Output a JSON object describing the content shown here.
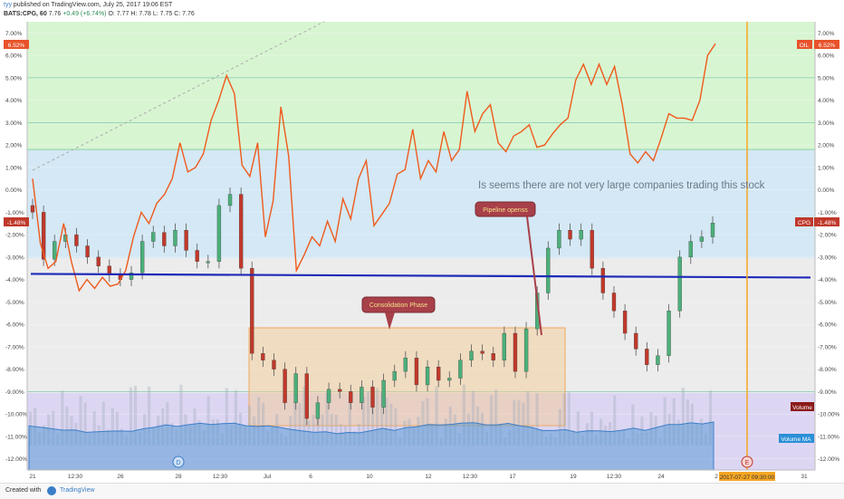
{
  "header": {
    "author": "tyy",
    "published_line": "published on TradingView.com, July 25, 2017 19:06 EST",
    "symbol": "BATS:CPG, 60",
    "last": "7.76",
    "change": "+0.49 (+6.74%)",
    "ohlc": "O: 7.77 H: 7.78 L: 7.75 C: 7.76"
  },
  "footer": {
    "created_with": "Created with",
    "brand": "TradingView"
  },
  "annotations": {
    "note": "Is seems there are not very large companies trading this stock",
    "pipeline": "Pipeline openss",
    "consolidation": "Consolidation Phase",
    "crosshair_date": "2017-07-27 09:30:00",
    "event_d": "D",
    "event_e": "E"
  },
  "price_tags": {
    "oil_left": "6.52%",
    "oil_right_label": "OIL",
    "oil_right": "6.52%",
    "cpg_left": "-1.48%",
    "cpg_right_label": "CPG",
    "cpg_right": "-1.48%",
    "volume": "Volume",
    "volume_ma": "Volume MA"
  },
  "colors": {
    "oil_line": "#ef5a1c",
    "support_line": "#1f2bb8",
    "candle_up": "#4caf7a",
    "candle_down": "#c0392b",
    "crosshair": "#f5a623",
    "volume": "#5b9bd5"
  },
  "chart_data": {
    "type": "line",
    "ylim": [
      -12.5,
      7.5
    ],
    "y_ticks": [
      "7.00%",
      "6.00%",
      "5.00%",
      "4.00%",
      "3.00%",
      "2.00%",
      "1.00%",
      "0.00%",
      "-1.00%",
      "-2.00%",
      "-3.00%",
      "-4.00%",
      "-5.00%",
      "-6.00%",
      "-7.00%",
      "-8.00%",
      "-9.00%",
      "-10.00%",
      "-11.00%",
      "-12.00%"
    ],
    "x_tick_labels": [
      "21",
      "12:30",
      "26",
      "28",
      "12:30",
      "Jul",
      "6",
      "10",
      "12",
      "12:30",
      "17",
      "19",
      "12:30",
      "24",
      "2",
      "31"
    ],
    "series": [
      {
        "name": "OIL",
        "values": [
          0.5,
          -2.4,
          -3.5,
          -3.2,
          -1.5,
          -3.2,
          -4.5,
          -4.0,
          -4.4,
          -3.9,
          -4.3,
          -4.2,
          -3.6,
          -2.1,
          -1.0,
          -1.5,
          -0.6,
          -0.2,
          0.5,
          2.1,
          0.8,
          1.0,
          1.6,
          3.1,
          4.0,
          5.1,
          4.3,
          1.1,
          0.6,
          2.1,
          -2.1,
          -0.5,
          3.7,
          1.5,
          -3.6,
          -2.9,
          -2.1,
          -2.5,
          -1.4,
          -2.3,
          -0.4,
          -1.3,
          0.5,
          1.3,
          -1.6,
          -1.1,
          -0.6,
          0.7,
          0.9,
          2.7,
          0.5,
          1.3,
          0.8,
          2.6,
          1.3,
          1.8,
          4.4,
          2.6,
          3.4,
          3.8,
          2.1,
          1.7,
          2.4,
          2.6,
          2.9,
          1.9,
          2.0,
          2.5,
          2.9,
          3.2,
          4.9,
          5.6,
          4.7,
          5.6,
          4.7,
          5.5,
          3.8,
          1.6,
          1.2,
          1.7,
          1.3,
          2.3,
          3.4,
          3.2,
          3.2,
          3.1,
          4.0,
          6.0,
          6.52
        ]
      },
      {
        "name": "CPG",
        "values": [
          -1.0,
          -3.1,
          -2.3,
          -2.0,
          -2.5,
          -3.0,
          -3.4,
          -3.8,
          -4.0,
          -3.7,
          -2.3,
          -1.9,
          -2.5,
          -1.8,
          -2.7,
          -3.2,
          -3.2,
          -0.7,
          -0.2,
          -3.5,
          -7.3,
          -7.6,
          -8.0,
          -9.5,
          -8.2,
          -10.2,
          -9.5,
          -8.9,
          -9.0,
          -9.5,
          -8.8,
          -9.7,
          -8.5,
          -8.1,
          -7.5,
          -8.7,
          -7.9,
          -8.5,
          -8.4,
          -7.6,
          -7.2,
          -7.3,
          -7.6,
          -6.4,
          -8.1,
          -6.2,
          -4.6,
          -2.6,
          -1.8,
          -2.2,
          -1.8,
          -3.5,
          -4.6,
          -5.4,
          -6.4,
          -7.1,
          -7.8,
          -7.4,
          -5.4,
          -3.0,
          -2.3,
          -2.1,
          -1.48
        ]
      }
    ],
    "horizontal_levels": [
      3.0,
      1.8,
      5.0,
      -9.0
    ],
    "support_level": -3.75,
    "crosshair_date": "2017-07-27 09:30:00"
  }
}
